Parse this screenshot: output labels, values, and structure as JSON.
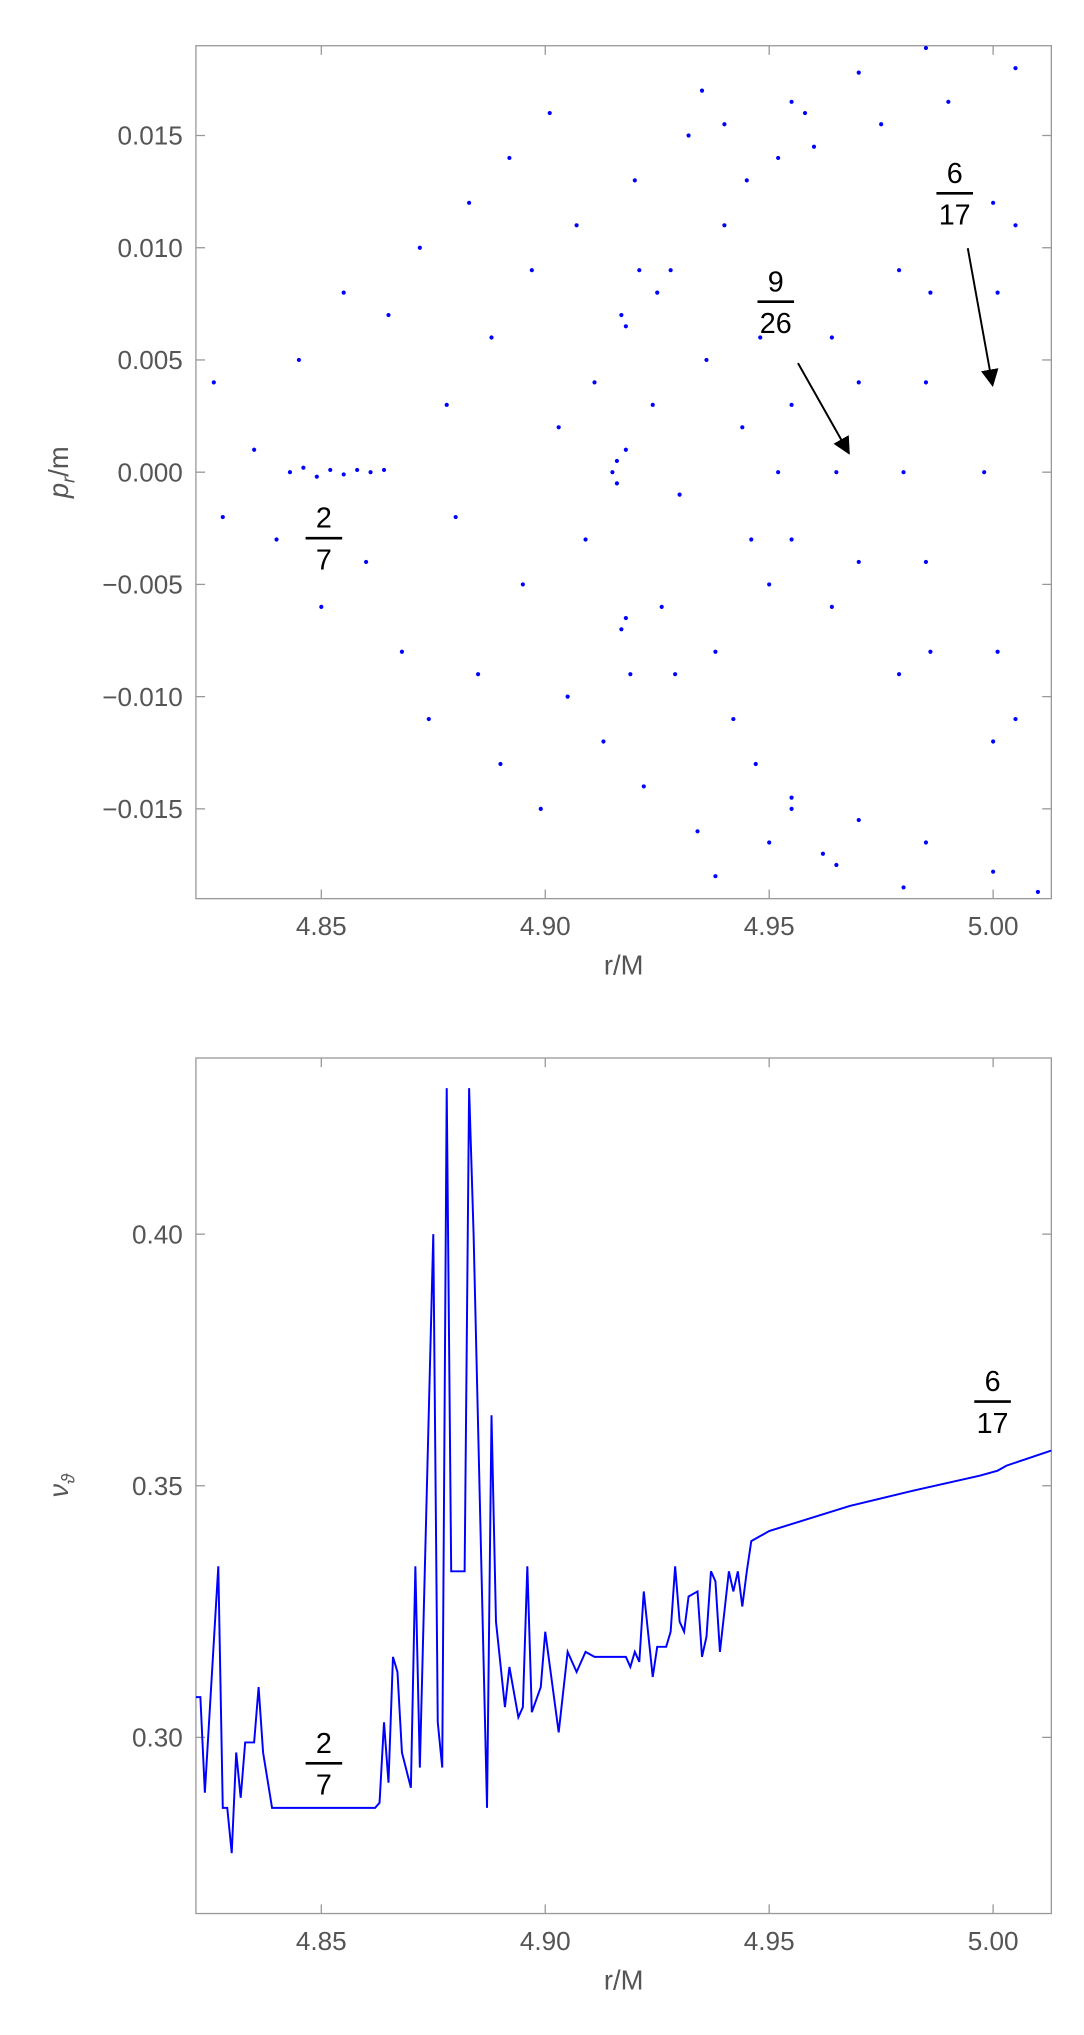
{
  "chart_data": [
    {
      "type": "scatter",
      "xlabel": "r/M",
      "ylabel": {
        "base": "p",
        "sub": "r",
        "rest": "/m"
      },
      "color": "#0000ff",
      "xlim": [
        4.822,
        5.013
      ],
      "ylim": [
        -0.019,
        0.019
      ],
      "xticks": [
        4.85,
        {
          "value": 4.9,
          "label": "4.90"
        },
        {
          "value": 4.95,
          "label": "4.95"
        },
        {
          "value": 5.0,
          "label": "5.00"
        }
      ],
      "yticks": [
        {
          "value": -0.015,
          "label": "−0.015"
        },
        {
          "value": -0.01,
          "label": "−0.010"
        },
        {
          "value": -0.005,
          "label": "−0.005"
        },
        {
          "value": 0,
          "label": "0.000"
        },
        {
          "value": 0.005,
          "label": "0.005"
        },
        {
          "value": 0.01,
          "label": "0.010"
        },
        {
          "value": 0.015,
          "label": "0.015"
        }
      ],
      "annotations": [
        {
          "numerator": "2",
          "denominator": "7"
        },
        {
          "numerator": "9",
          "denominator": "26"
        },
        {
          "numerator": "6",
          "denominator": "17"
        }
      ],
      "x": [
        4.843,
        4.846,
        4.849,
        4.852,
        4.855,
        4.858,
        4.861,
        4.864,
        4.826,
        4.828,
        4.835,
        4.84,
        4.845,
        4.85,
        4.855,
        4.86,
        4.865,
        4.868,
        4.872,
        4.874,
        4.878,
        4.88,
        4.883,
        4.885,
        4.888,
        4.89,
        4.892,
        4.895,
        4.897,
        4.899,
        4.901,
        4.903,
        4.905,
        4.907,
        4.909,
        4.911,
        4.913,
        4.92,
        4.922,
        4.924,
        4.926,
        4.928,
        4.93,
        4.932,
        4.934,
        4.936,
        4.938,
        4.94,
        4.942,
        4.944,
        4.946,
        4.948,
        4.95,
        4.945,
        4.947,
        4.952,
        4.955,
        4.958,
        4.962,
        4.935,
        4.938,
        4.918,
        4.925,
        4.929,
        4.915,
        4.916,
        4.916,
        4.917,
        4.918,
        4.917,
        4.918,
        4.921,
        4.919,
        4.94,
        4.955,
        4.97,
        4.985,
        4.96,
        4.975,
        4.99,
        5.005,
        4.95,
        4.965,
        4.98,
        4.955,
        4.97,
        4.985,
        5.0,
        5.01,
        4.952,
        4.955,
        4.955,
        4.964,
        4.964,
        4.979,
        4.979,
        5.0,
        5.0,
        4.965,
        4.97,
        4.97,
        4.986,
        4.986,
        5.005,
        5.005,
        4.98,
        4.985,
        4.985,
        5.001,
        5.001,
        4.998
      ],
      "y": [
        0,
        0.0002,
        -0.0002,
        0.0001,
        -0.0001,
        0.0001,
        0,
        0.0001,
        0.004,
        -0.002,
        0.001,
        -0.003,
        0.005,
        -0.006,
        0.008,
        -0.004,
        0.007,
        -0.008,
        0.01,
        -0.011,
        0.003,
        -0.002,
        0.012,
        -0.009,
        0.006,
        -0.013,
        0.014,
        -0.005,
        0.009,
        -0.015,
        0.016,
        0.002,
        -0.01,
        0.011,
        -0.003,
        0.004,
        -0.012,
        0.013,
        -0.014,
        0.003,
        -0.006,
        0.009,
        -0.001,
        0.015,
        -0.016,
        0.005,
        -0.008,
        0.011,
        -0.011,
        0.002,
        -0.003,
        0.006,
        -0.005,
        0.013,
        -0.013,
        0.014,
        -0.015,
        0.016,
        -0.017,
        0.017,
        -0.018,
        0.001,
        0.008,
        -0.009,
        0,
        0.0005,
        -0.0005,
        0.007,
        0.0065,
        -0.007,
        -0.0065,
        0.009,
        -0.009,
        0.0155,
        0.0165,
        0.0178,
        0.0189,
        0.0145,
        0.0155,
        0.0165,
        0.018,
        -0.0165,
        -0.0175,
        -0.0185,
        -0.0145,
        -0.0155,
        -0.0165,
        -0.0178,
        -0.0187,
        0,
        0.003,
        -0.003,
        0.006,
        -0.006,
        0.009,
        -0.009,
        0.012,
        -0.012,
        0,
        0.004,
        -0.004,
        0.008,
        -0.008,
        0.011,
        -0.011,
        0,
        0.004,
        -0.004,
        0.008,
        -0.008,
        0
      ]
    },
    {
      "type": "line",
      "xlabel": "r/M",
      "ylabel": {
        "base": "ν",
        "sub": "ϑ"
      },
      "color": "#0000ff",
      "xlim": [
        4.822,
        5.013
      ],
      "ylim": [
        0.265,
        0.435
      ],
      "xticks": [
        4.85,
        {
          "value": 4.9,
          "label": "4.90"
        },
        {
          "value": 4.95,
          "label": "4.95"
        },
        {
          "value": 5.0,
          "label": "5.00"
        }
      ],
      "yticks": [
        {
          "value": 0.3,
          "label": "0.30"
        },
        {
          "value": 0.35,
          "label": "0.35"
        },
        {
          "value": 0.4,
          "label": "0.40"
        }
      ],
      "annotations": [
        {
          "numerator": "2",
          "denominator": "7"
        },
        {
          "numerator": "6",
          "denominator": "17"
        }
      ],
      "x": [
        4.822,
        4.823,
        4.824,
        4.827,
        4.828,
        4.829,
        4.83,
        4.831,
        4.832,
        4.833,
        4.835,
        4.836,
        4.837,
        4.839,
        4.862,
        4.863,
        4.864,
        4.865,
        4.866,
        4.867,
        4.868,
        4.87,
        4.871,
        4.872,
        4.875,
        4.876,
        4.877,
        4.878,
        4.879,
        4.882,
        4.883,
        4.884,
        4.887,
        4.888,
        4.889,
        4.891,
        4.892,
        4.894,
        4.895,
        4.896,
        4.897,
        4.899,
        4.9,
        4.903,
        4.905,
        4.907,
        4.909,
        4.911,
        4.918,
        4.919,
        4.92,
        4.921,
        4.922,
        4.924,
        4.925,
        4.927,
        4.928,
        4.929,
        4.93,
        4.931,
        4.932,
        4.934,
        4.935,
        4.936,
        4.937,
        4.938,
        4.939,
        4.941,
        4.942,
        4.943,
        4.944,
        4.945,
        4.946,
        4.95,
        4.968,
        4.982,
        4.997,
        5.001,
        5.003,
        5.013
      ],
      "values": [
        0.308,
        0.308,
        0.289,
        0.334,
        0.286,
        0.286,
        0.277,
        0.297,
        0.288,
        0.299,
        0.299,
        0.31,
        0.297,
        0.286,
        0.286,
        0.287,
        0.303,
        0.291,
        0.316,
        0.313,
        0.297,
        0.29,
        0.334,
        0.294,
        0.4,
        0.303,
        0.294,
        0.429,
        0.333,
        0.333,
        0.429,
        0.4,
        0.286,
        0.364,
        0.323,
        0.306,
        0.314,
        0.304,
        0.306,
        0.334,
        0.305,
        0.31,
        0.321,
        0.301,
        0.317,
        0.313,
        0.317,
        0.316,
        0.316,
        0.314,
        0.317,
        0.315,
        0.329,
        0.312,
        0.318,
        0.318,
        0.321,
        0.334,
        0.323,
        0.321,
        0.328,
        0.329,
        0.316,
        0.32,
        0.333,
        0.331,
        0.317,
        0.333,
        0.329,
        0.333,
        0.326,
        0.333,
        0.339,
        0.341,
        0.346,
        0.349,
        0.352,
        0.353,
        0.354,
        0.357
      ]
    }
  ]
}
